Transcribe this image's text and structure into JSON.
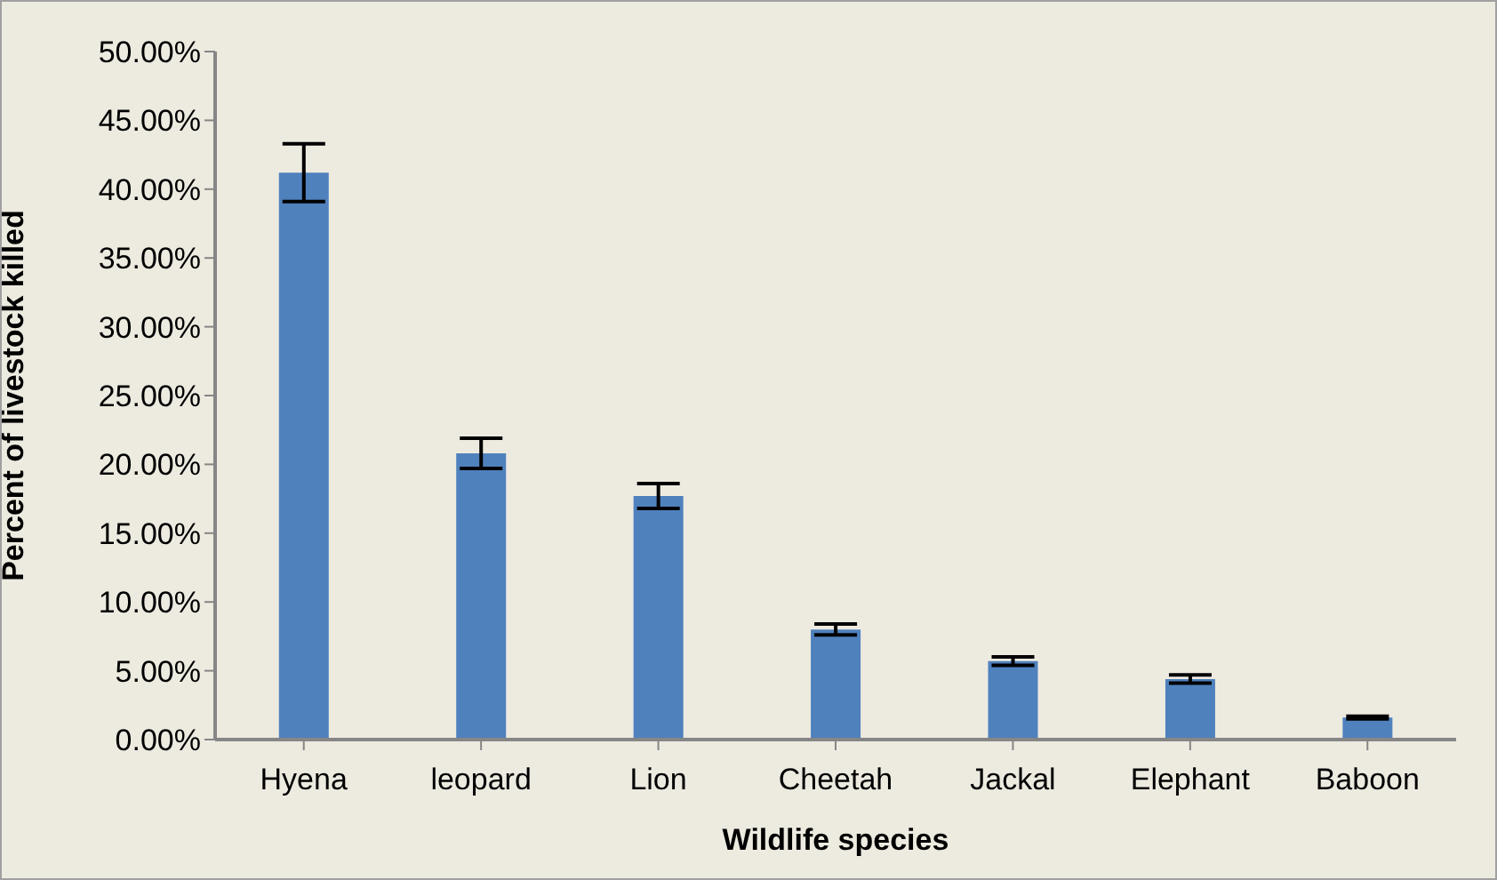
{
  "chart_data": {
    "type": "bar",
    "xlabel": "Wildlife species",
    "ylabel": "Percent of livestock killed",
    "categories": [
      "Hyena",
      "leopard",
      "Lion",
      "Cheetah",
      "Jackal",
      "Elephant",
      "Baboon"
    ],
    "values": [
      41.2,
      20.8,
      17.7,
      8.0,
      5.7,
      4.4,
      1.6
    ],
    "errors": [
      2.1,
      1.1,
      0.9,
      0.4,
      0.3,
      0.3,
      0.1
    ],
    "color": "#4f81bd",
    "ylim": [
      0,
      50
    ],
    "yticks": [
      {
        "value": 0,
        "label": "0.00%"
      },
      {
        "value": 5,
        "label": "5.00%"
      },
      {
        "value": 10,
        "label": "10.00%"
      },
      {
        "value": 15,
        "label": "15.00%"
      },
      {
        "value": 20,
        "label": "20.00%"
      },
      {
        "value": 25,
        "label": "25.00%"
      },
      {
        "value": 30,
        "label": "30.00%"
      },
      {
        "value": 35,
        "label": "35.00%"
      },
      {
        "value": 40,
        "label": "40.00%"
      },
      {
        "value": 45,
        "label": "45.00%"
      },
      {
        "value": 50,
        "label": "50.00%"
      }
    ],
    "grid": false,
    "legend": false
  }
}
